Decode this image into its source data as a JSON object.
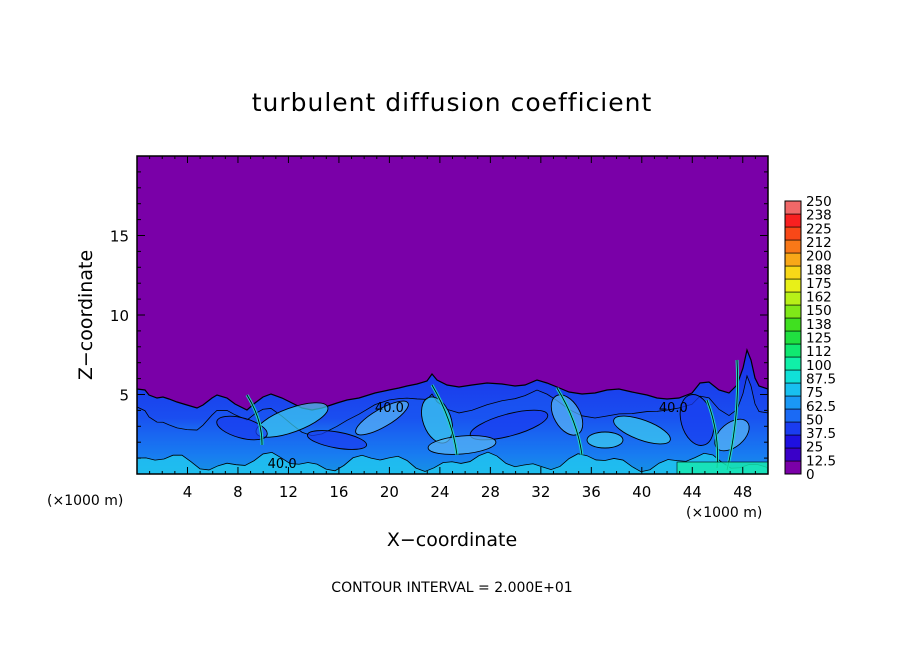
{
  "chart_data": {
    "type": "heatmap",
    "title": "turbulent diffusion coefficient",
    "xlabel": "X−coordinate",
    "ylabel": "Z−coordinate",
    "x_unit_left": "(×1000 m)",
    "x_unit_right": "(×1000 m)",
    "footer": "CONTOUR INTERVAL = 2.000E+01",
    "xlim": [
      0,
      50
    ],
    "ylim": [
      0,
      20
    ],
    "x_ticks": [
      4,
      8,
      12,
      16,
      20,
      24,
      28,
      32,
      36,
      40,
      44,
      48
    ],
    "x_tick_labels": [
      "4",
      "8",
      "12",
      "16",
      "20",
      "24",
      "28",
      "32",
      "36",
      "40",
      "44",
      "48"
    ],
    "y_ticks": [
      5,
      10,
      15
    ],
    "y_tick_labels": [
      "5",
      "10",
      "15"
    ],
    "colorbar": {
      "levels": [
        0,
        12.5,
        25,
        37.5,
        50,
        62.5,
        75,
        87.5,
        100,
        112,
        125,
        138,
        150,
        162,
        175,
        188,
        200,
        212,
        225,
        238,
        250
      ],
      "labels": [
        "0",
        "12.5",
        "25",
        "37.5",
        "50",
        "62.5",
        "75",
        "87.5",
        "100",
        "112",
        "125",
        "138",
        "150",
        "162",
        "175",
        "188",
        "200",
        "212",
        "225",
        "238",
        "250"
      ],
      "colors": [
        "#7a00a8",
        "#3a00c8",
        "#1e10e0",
        "#1a3cf0",
        "#1a6af5",
        "#1a98f5",
        "#18c0f0",
        "#10e0d8",
        "#10f0a8",
        "#10e870",
        "#20e040",
        "#40e020",
        "#80e818",
        "#b8f018",
        "#e8f018",
        "#f8d818",
        "#f8a818",
        "#f87818",
        "#f84818",
        "#f82020",
        "#f06868"
      ]
    },
    "contour_labels": [
      {
        "text": "40.0",
        "x": 20,
        "z": 4.2
      },
      {
        "text": "40.0",
        "x": 42.5,
        "z": 4.2
      },
      {
        "text": "40.0",
        "x": 11.5,
        "z": 0.7
      }
    ],
    "background_value_color": "#7a00a8"
  }
}
